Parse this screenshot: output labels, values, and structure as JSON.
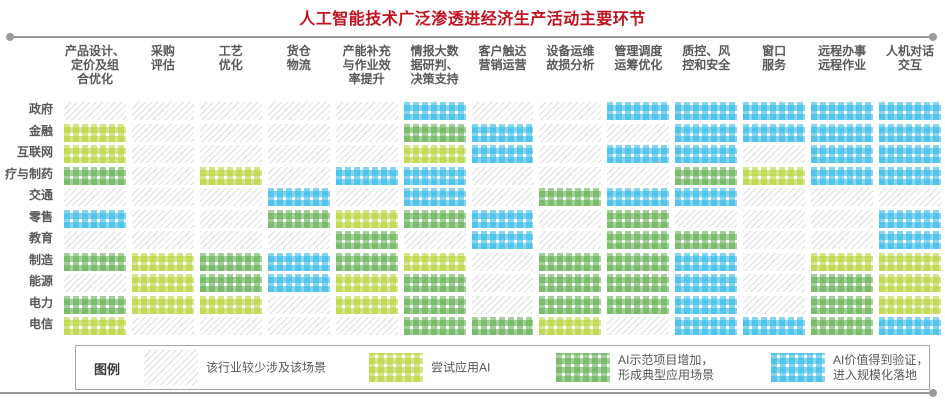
{
  "title": "人工智能技术广泛渗透进经济生产活动主要环节",
  "legend": {
    "label": "图例",
    "items": [
      {
        "key": "rare",
        "level": 0,
        "label": "该行业较少涉及该场景",
        "color": "#dcdcdc"
      },
      {
        "key": "try",
        "level": 1,
        "label": "尝试应用AI",
        "color": "#b5d334"
      },
      {
        "key": "demo",
        "level": 2,
        "label": "AI示范项目增加，形成典型应用场景",
        "color": "#5fae4e"
      },
      {
        "key": "scale",
        "level": 3,
        "label": "AI价值得到验证，进入规模化落地",
        "color": "#2eb7e6"
      }
    ]
  },
  "chart_data": {
    "type": "heatmap",
    "title": "人工智能技术广泛渗透进经济生产活动主要环节",
    "columns": [
      "产品设计、定价及组合优化",
      "采购评估",
      "工艺优化",
      "货仓物流",
      "产能补充与作业效率提升",
      "情报大数据研判、决策支持",
      "客户触达营销运营",
      "设备运维故损分析",
      "管理调度运筹优化",
      "质控、风控和安全",
      "窗口服务",
      "远程办事远程作业",
      "人机对话交互"
    ],
    "column_lines": [
      [
        "产品设计、",
        "定价及组",
        "合优化"
      ],
      [
        "采购",
        "评估"
      ],
      [
        "工艺",
        "优化"
      ],
      [
        "货仓",
        "物流"
      ],
      [
        "产能补充",
        "与作业效",
        "率提升"
      ],
      [
        "情报大数",
        "据研判、",
        "决策支持"
      ],
      [
        "客户触达",
        "营销运营"
      ],
      [
        "设备运维",
        "故损分析"
      ],
      [
        "管理调度",
        "运筹优化"
      ],
      [
        "质控、风",
        "控和安全"
      ],
      [
        "窗口",
        "服务"
      ],
      [
        "远程办事",
        "远程作业"
      ],
      [
        "人机对话",
        "交互"
      ]
    ],
    "rows": [
      "政府",
      "金融",
      "互联网",
      "疗与制药",
      "交通",
      "零售",
      "教育",
      "制造",
      "能源",
      "电力",
      "电信"
    ],
    "levels": {
      "0": "该行业较少涉及该场景",
      "1": "尝试应用AI",
      "2": "AI示范项目增加，形成典型应用场景",
      "3": "AI价值得到验证，进入规模化落地"
    },
    "level_colors": {
      "0": "#dcdcdc",
      "1": "#b5d334",
      "2": "#5fae4e",
      "3": "#2eb7e6"
    },
    "matrix": [
      [
        0,
        0,
        0,
        0,
        0,
        3,
        0,
        0,
        3,
        3,
        3,
        3,
        3
      ],
      [
        1,
        0,
        0,
        0,
        0,
        2,
        3,
        0,
        0,
        3,
        3,
        3,
        3
      ],
      [
        1,
        0,
        0,
        0,
        0,
        1,
        3,
        0,
        3,
        3,
        0,
        3,
        3
      ],
      [
        2,
        0,
        1,
        0,
        3,
        3,
        0,
        0,
        0,
        2,
        1,
        3,
        3
      ],
      [
        0,
        0,
        0,
        3,
        0,
        3,
        0,
        2,
        3,
        3,
        0,
        0,
        0
      ],
      [
        3,
        0,
        0,
        2,
        1,
        2,
        3,
        0,
        2,
        0,
        0,
        0,
        3
      ],
      [
        0,
        0,
        0,
        0,
        2,
        0,
        3,
        0,
        2,
        2,
        0,
        0,
        3
      ],
      [
        2,
        1,
        2,
        3,
        2,
        1,
        0,
        2,
        2,
        3,
        0,
        1,
        1
      ],
      [
        0,
        1,
        2,
        3,
        1,
        2,
        0,
        2,
        2,
        3,
        0,
        2,
        1
      ],
      [
        2,
        1,
        1,
        0,
        1,
        2,
        0,
        2,
        2,
        3,
        0,
        2,
        1
      ],
      [
        1,
        0,
        0,
        0,
        0,
        2,
        2,
        1,
        0,
        3,
        3,
        2,
        3
      ]
    ]
  }
}
